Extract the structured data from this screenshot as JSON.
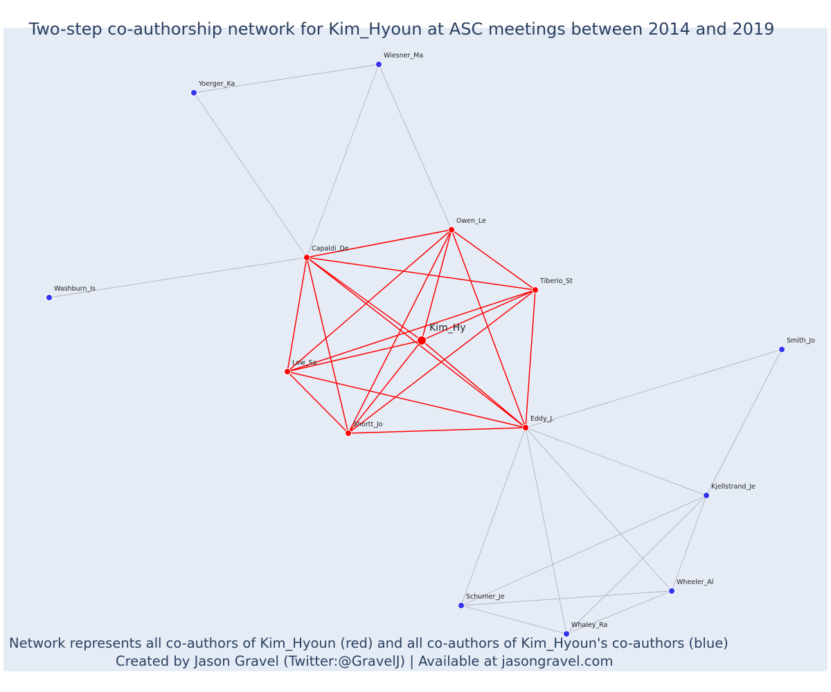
{
  "title": "Two-step co-authorship network for Kim_Hyoun at ASC meetings between 2014 and 2019",
  "caption_line1": "Network represents all co-authors of Kim_Hyoun (red) and all co-authors of Kim_Hyoun's co-authors (blue)",
  "caption_line2": "Created by Jason Gravel (Twitter:@GravelJ) | Available at jasongravel.com",
  "colors": {
    "first_step": "#ff0000",
    "second_step": "#3333ee",
    "background": "#e5ecf6",
    "gray_edge": "#b0b0c0",
    "title_text": "#2a3f5f"
  },
  "network": {
    "focal": "Kim_Hy",
    "nodes": [
      {
        "id": "Kim_Hy",
        "group": "focal"
      },
      {
        "id": "Owen_Le",
        "group": "coauthor"
      },
      {
        "id": "Capaldi_De",
        "group": "coauthor"
      },
      {
        "id": "Tiberio_St",
        "group": "coauthor"
      },
      {
        "id": "Low_Sa",
        "group": "coauthor"
      },
      {
        "id": "Shortt_Jo",
        "group": "coauthor"
      },
      {
        "id": "Eddy_J.",
        "group": "coauthor"
      },
      {
        "id": "Wiesner_Ma",
        "group": "second"
      },
      {
        "id": "Yoerger_Ka",
        "group": "second"
      },
      {
        "id": "Washburn_Is",
        "group": "second"
      },
      {
        "id": "Smith_Jo",
        "group": "second"
      },
      {
        "id": "Kjellstrand_Je",
        "group": "second"
      },
      {
        "id": "Wheeler_Al",
        "group": "second"
      },
      {
        "id": "Schumer_Je",
        "group": "second"
      },
      {
        "id": "Whaley_Ra",
        "group": "second"
      }
    ],
    "red_edges": [
      [
        "Kim_Hy",
        "Owen_Le"
      ],
      [
        "Kim_Hy",
        "Capaldi_De"
      ],
      [
        "Kim_Hy",
        "Tiberio_St"
      ],
      [
        "Kim_Hy",
        "Low_Sa"
      ],
      [
        "Kim_Hy",
        "Shortt_Jo"
      ],
      [
        "Kim_Hy",
        "Eddy_J."
      ],
      [
        "Owen_Le",
        "Capaldi_De"
      ],
      [
        "Owen_Le",
        "Tiberio_St"
      ],
      [
        "Owen_Le",
        "Low_Sa"
      ],
      [
        "Owen_Le",
        "Shortt_Jo"
      ],
      [
        "Owen_Le",
        "Eddy_J."
      ],
      [
        "Capaldi_De",
        "Tiberio_St"
      ],
      [
        "Capaldi_De",
        "Low_Sa"
      ],
      [
        "Capaldi_De",
        "Shortt_Jo"
      ],
      [
        "Capaldi_De",
        "Eddy_J."
      ],
      [
        "Tiberio_St",
        "Low_Sa"
      ],
      [
        "Tiberio_St",
        "Shortt_Jo"
      ],
      [
        "Tiberio_St",
        "Eddy_J."
      ],
      [
        "Low_Sa",
        "Shortt_Jo"
      ],
      [
        "Low_Sa",
        "Eddy_J."
      ],
      [
        "Shortt_Jo",
        "Eddy_J."
      ]
    ],
    "gray_edges": [
      [
        "Wiesner_Ma",
        "Yoerger_Ka"
      ],
      [
        "Wiesner_Ma",
        "Capaldi_De"
      ],
      [
        "Wiesner_Ma",
        "Owen_Le"
      ],
      [
        "Yoerger_Ka",
        "Capaldi_De"
      ],
      [
        "Washburn_Is",
        "Capaldi_De"
      ],
      [
        "Smith_Jo",
        "Eddy_J."
      ],
      [
        "Smith_Jo",
        "Kjellstrand_Je"
      ],
      [
        "Eddy_J.",
        "Kjellstrand_Je"
      ],
      [
        "Eddy_J.",
        "Wheeler_Al"
      ],
      [
        "Eddy_J.",
        "Schumer_Je"
      ],
      [
        "Eddy_J.",
        "Whaley_Ra"
      ],
      [
        "Kjellstrand_Je",
        "Wheeler_Al"
      ],
      [
        "Kjellstrand_Je",
        "Schumer_Je"
      ],
      [
        "Kjellstrand_Je",
        "Whaley_Ra"
      ],
      [
        "Wheeler_Al",
        "Schumer_Je"
      ],
      [
        "Wheeler_Al",
        "Whaley_Ra"
      ],
      [
        "Schumer_Je",
        "Whaley_Ra"
      ]
    ]
  }
}
